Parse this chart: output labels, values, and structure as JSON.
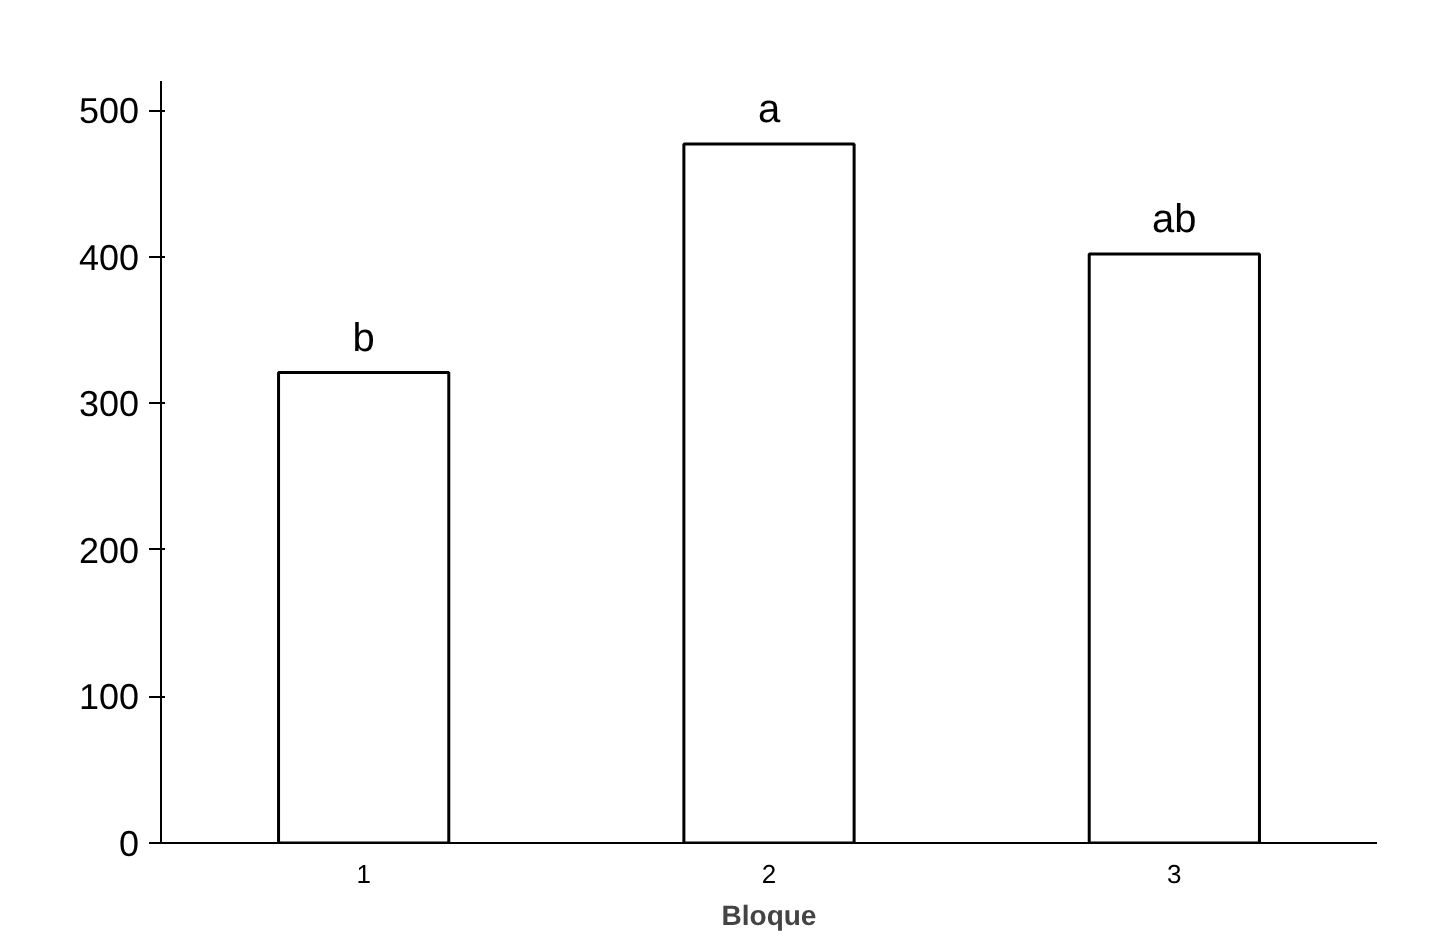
{
  "chart_data": {
    "type": "bar",
    "xlabel": "Bloque",
    "categories": [
      "1",
      "2",
      "3"
    ],
    "values": [
      321,
      477,
      402
    ],
    "color": "#ffffff",
    "ylim": [
      0,
      520
    ],
    "yticks": [
      0,
      100,
      200,
      300,
      400,
      500
    ],
    "grid": false,
    "annotations": [
      {
        "text": "b",
        "x": "1",
        "y": 321
      },
      {
        "text": "a",
        "x": "2",
        "y": 477
      },
      {
        "text": "ab",
        "x": "3",
        "y": 402
      }
    ]
  }
}
